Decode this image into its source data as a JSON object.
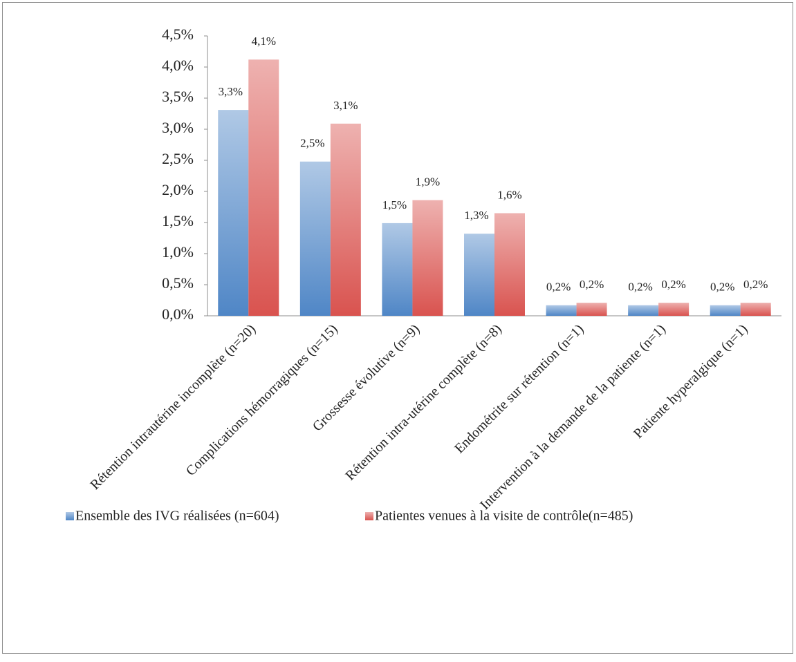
{
  "chart_data": {
    "type": "bar",
    "categories": [
      "Rétention intrautérine incomplète (n=20)",
      "Complications hémorragiques (n=15)",
      "Grossesse évolutive (n=9)",
      "Rétention intra-utérine complète (n=8)",
      "Endométrite sur rétention (n=1)",
      "Intervention à la demande de la patiente (n=1)",
      "Patiente hyperalgique (n=1)"
    ],
    "series": [
      {
        "name": "Ensemble des IVG réalisées (n=604)",
        "color": "#4f86c6",
        "values": [
          3.31,
          2.48,
          1.49,
          1.32,
          0.17,
          0.17,
          0.17
        ],
        "value_labels": [
          "3,3%",
          "2,5%",
          "1,5%",
          "1,3%",
          "0,2%",
          "0,2%",
          "0,2%"
        ]
      },
      {
        "name": "Patientes venues à la visite de contrôle(n=485)",
        "color": "#d9534f",
        "values": [
          4.12,
          3.09,
          1.86,
          1.65,
          0.21,
          0.21,
          0.21
        ],
        "value_labels": [
          "4,1%",
          "3,1%",
          "1,9%",
          "1,6%",
          "0,2%",
          "0,2%",
          "0,2%"
        ]
      }
    ],
    "ylim": [
      0,
      4.5
    ],
    "yticks": [
      {
        "value": 0,
        "label": "0,0%"
      },
      {
        "value": 0.5,
        "label": "0,5%"
      },
      {
        "value": 1,
        "label": "1,0%"
      },
      {
        "value": 1.5,
        "label": "1,5%"
      },
      {
        "value": 2,
        "label": "2,0%"
      },
      {
        "value": 2.5,
        "label": "2,5%"
      },
      {
        "value": 3,
        "label": "3,0%"
      },
      {
        "value": 3.5,
        "label": "3,5%"
      },
      {
        "value": 4,
        "label": "4,0%"
      },
      {
        "value": 4.5,
        "label": "4,5%"
      }
    ],
    "grid": false,
    "legend": "bottom"
  }
}
